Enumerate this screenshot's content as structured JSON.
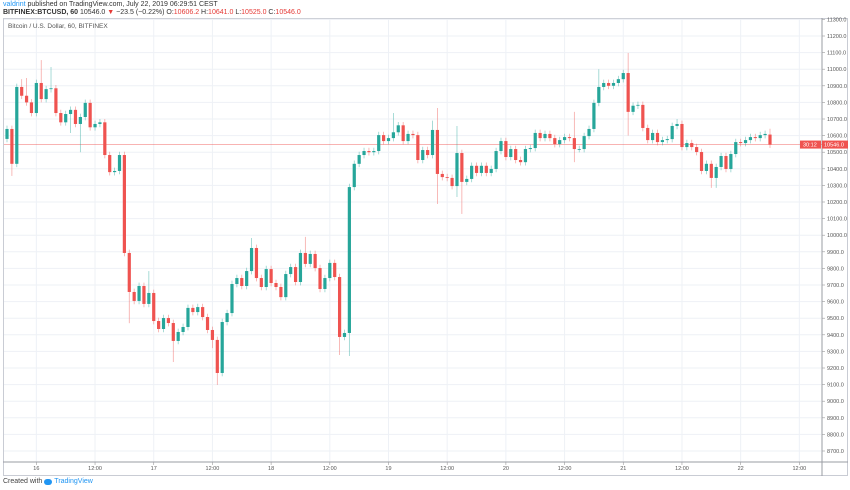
{
  "header": {
    "author": "valdrint",
    "published_text": " published on TradingView.com, July 22, 2019 06:29:51 CEST",
    "symbol": "BITFINEX:BTCUSD, 60",
    "last": "10546.0",
    "change": "−23.5 (−0.22%)",
    "o_label": "O:",
    "o": "10606.2",
    "h_label": "H:",
    "h": "10641.0",
    "l_label": "L:",
    "l": "10525.0",
    "c_label": "C:",
    "c": "10546.0",
    "change_icon": "down-triangle-icon"
  },
  "legend": "Bitcoin / U.S. Dollar, 60, BITFINEX",
  "footer": {
    "created_with": "Created with",
    "brand": "TradingView"
  },
  "colors": {
    "up": "#26a69a",
    "down": "#ef5350",
    "grid": "#eef1f6",
    "price_line": "#ef5350"
  },
  "price_label": "10546.0",
  "countdown_label": "30:12",
  "chart_data": {
    "type": "candlestick",
    "interval": "60",
    "first_candle": "Jul 15 18:00",
    "ylim": [
      8650,
      11320
    ],
    "y_ticks": [
      "11300.0",
      "11200.0",
      "11100.0",
      "11000.0",
      "10900.0",
      "10800.0",
      "10700.0",
      "10600.0",
      "10500.0",
      "10400.0",
      "10300.0",
      "10200.0",
      "10100.0",
      "10000.0",
      "9900.0",
      "9800.0",
      "9700.0",
      "9600.0",
      "9500.0",
      "9400.0",
      "9300.0",
      "9200.0",
      "9100.0",
      "9000.0",
      "8900.0",
      "8800.0",
      "8700.0"
    ],
    "x_ticks": [
      "16",
      "12:00",
      "17",
      "12:00",
      "18",
      "12:00",
      "19",
      "12:00",
      "20",
      "12:00",
      "21",
      "12:00",
      "22",
      "12:00"
    ],
    "first_open": 10580,
    "close": [
      10640,
      10430,
      10893,
      10840,
      10800,
      10736,
      10917,
      10820,
      10880,
      10885,
      10736,
      10680,
      10730,
      10755,
      10670,
      10712,
      10797,
      10650,
      10670,
      10680,
      10483,
      10380,
      10387,
      10483,
      9893,
      9658,
      9604,
      9694,
      9586,
      9652,
      9483,
      9435,
      9501,
      9471,
      9363,
      9417,
      9447,
      9562,
      9537,
      9567,
      9507,
      9429,
      9369,
      9170,
      9477,
      9531,
      9706,
      9742,
      9694,
      9784,
      9923,
      9742,
      9688,
      9796,
      9712,
      9688,
      9627,
      9766,
      9808,
      9718,
      9893,
      9827,
      9887,
      9802,
      9676,
      9742,
      9833,
      9748,
      9387,
      9411,
      10290,
      10430,
      10483,
      10507,
      10500,
      10507,
      10603,
      10567,
      10585,
      10620,
      10662,
      10567,
      10610,
      10603,
      10453,
      10513,
      10483,
      10634,
      10369,
      10350,
      10345,
      10296,
      10495,
      10321,
      10339,
      10418,
      10375,
      10418,
      10375,
      10399,
      10507,
      10567,
      10471,
      10519,
      10453,
      10440,
      10519,
      10525,
      10616,
      10585,
      10610,
      10585,
      10549,
      10573,
      10591,
      10585,
      10519,
      10519,
      10597,
      10640,
      10797,
      10893,
      10917,
      10900,
      10917,
      10940,
      10977,
      10743,
      10780,
      10785,
      10646,
      10573,
      10616,
      10561,
      10573,
      10579,
      10658,
      10670,
      10531,
      10555,
      10531,
      10501,
      10387,
      10430,
      10345,
      10411,
      10477,
      10399,
      10489,
      10561,
      10555,
      10573,
      10591,
      10585,
      10603,
      10610,
      10546
    ],
    "last_candle": {
      "open": 10606.2,
      "high": 10641.0,
      "low": 10525.0,
      "close": 10546.0
    },
    "wick_extremes": [
      {
        "i": 1,
        "low": 10357
      },
      {
        "i": 3,
        "high": 10940
      },
      {
        "i": 4,
        "high": 10947
      },
      {
        "i": 7,
        "high": 11055
      },
      {
        "i": 9,
        "high": 11013
      },
      {
        "i": 13,
        "low": 10616
      },
      {
        "i": 15,
        "low": 10500
      },
      {
        "i": 25,
        "low": 9470
      },
      {
        "i": 29,
        "high": 9784
      },
      {
        "i": 34,
        "low": 9236
      },
      {
        "i": 42,
        "low": 9320
      },
      {
        "i": 43,
        "low": 9098
      },
      {
        "i": 50,
        "high": 9983
      },
      {
        "i": 61,
        "high": 9990
      },
      {
        "i": 68,
        "low": 9278
      },
      {
        "i": 70,
        "low": 9272
      },
      {
        "i": 79,
        "high": 10736
      },
      {
        "i": 87,
        "high": 10690
      },
      {
        "i": 88,
        "high": 10766,
        "low": 10188
      },
      {
        "i": 92,
        "high": 10658,
        "low": 10230
      },
      {
        "i": 93,
        "low": 10128
      },
      {
        "i": 116,
        "high": 10743,
        "low": 10440
      },
      {
        "i": 121,
        "high": 11000
      },
      {
        "i": 127,
        "high": 11098,
        "low": 10600
      },
      {
        "i": 137,
        "high": 10700
      },
      {
        "i": 144,
        "low": 10285
      },
      {
        "i": 145,
        "low": 10285
      }
    ],
    "current_price": 10546.0,
    "grid": true
  }
}
